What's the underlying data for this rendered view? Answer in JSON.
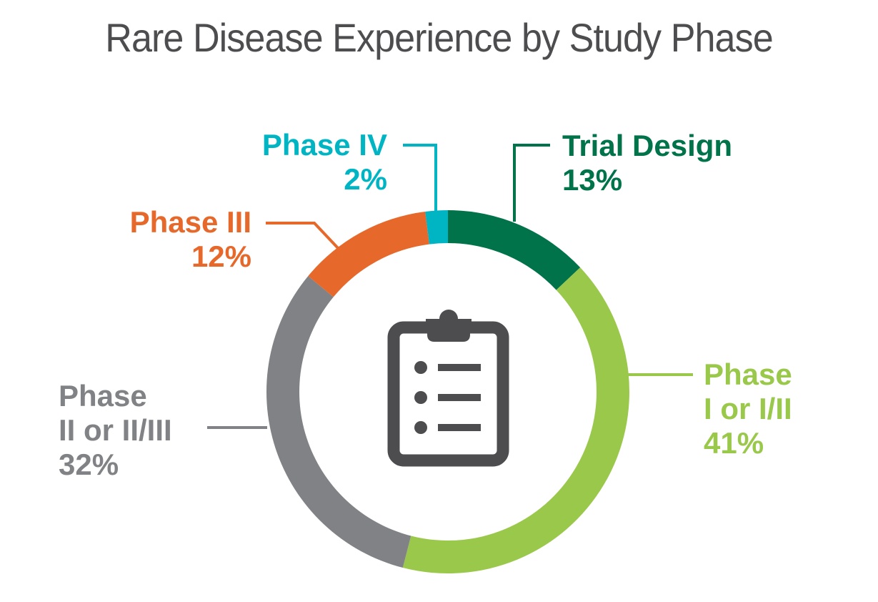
{
  "title": "Rare Disease Experience by Study Phase",
  "icon": "clipboard-checklist-icon",
  "chart_data": {
    "type": "pie",
    "donut": true,
    "title": "Rare Disease Experience by Study Phase",
    "slices": [
      {
        "label_lines": [
          "Trial Design"
        ],
        "pct_label": "13%",
        "value": 13,
        "color": "#00734a"
      },
      {
        "label_lines": [
          "Phase",
          "I or I/II"
        ],
        "pct_label": "41%",
        "value": 41,
        "color": "#9ac84b"
      },
      {
        "label_lines": [
          "Phase",
          "II or II/III"
        ],
        "pct_label": "32%",
        "value": 32,
        "color": "#808285"
      },
      {
        "label_lines": [
          "Phase III"
        ],
        "pct_label": "12%",
        "value": 12,
        "color": "#e6682b"
      },
      {
        "label_lines": [
          "Phase IV"
        ],
        "pct_label": "2%",
        "value": 2,
        "color": "#00b5c3"
      }
    ]
  }
}
